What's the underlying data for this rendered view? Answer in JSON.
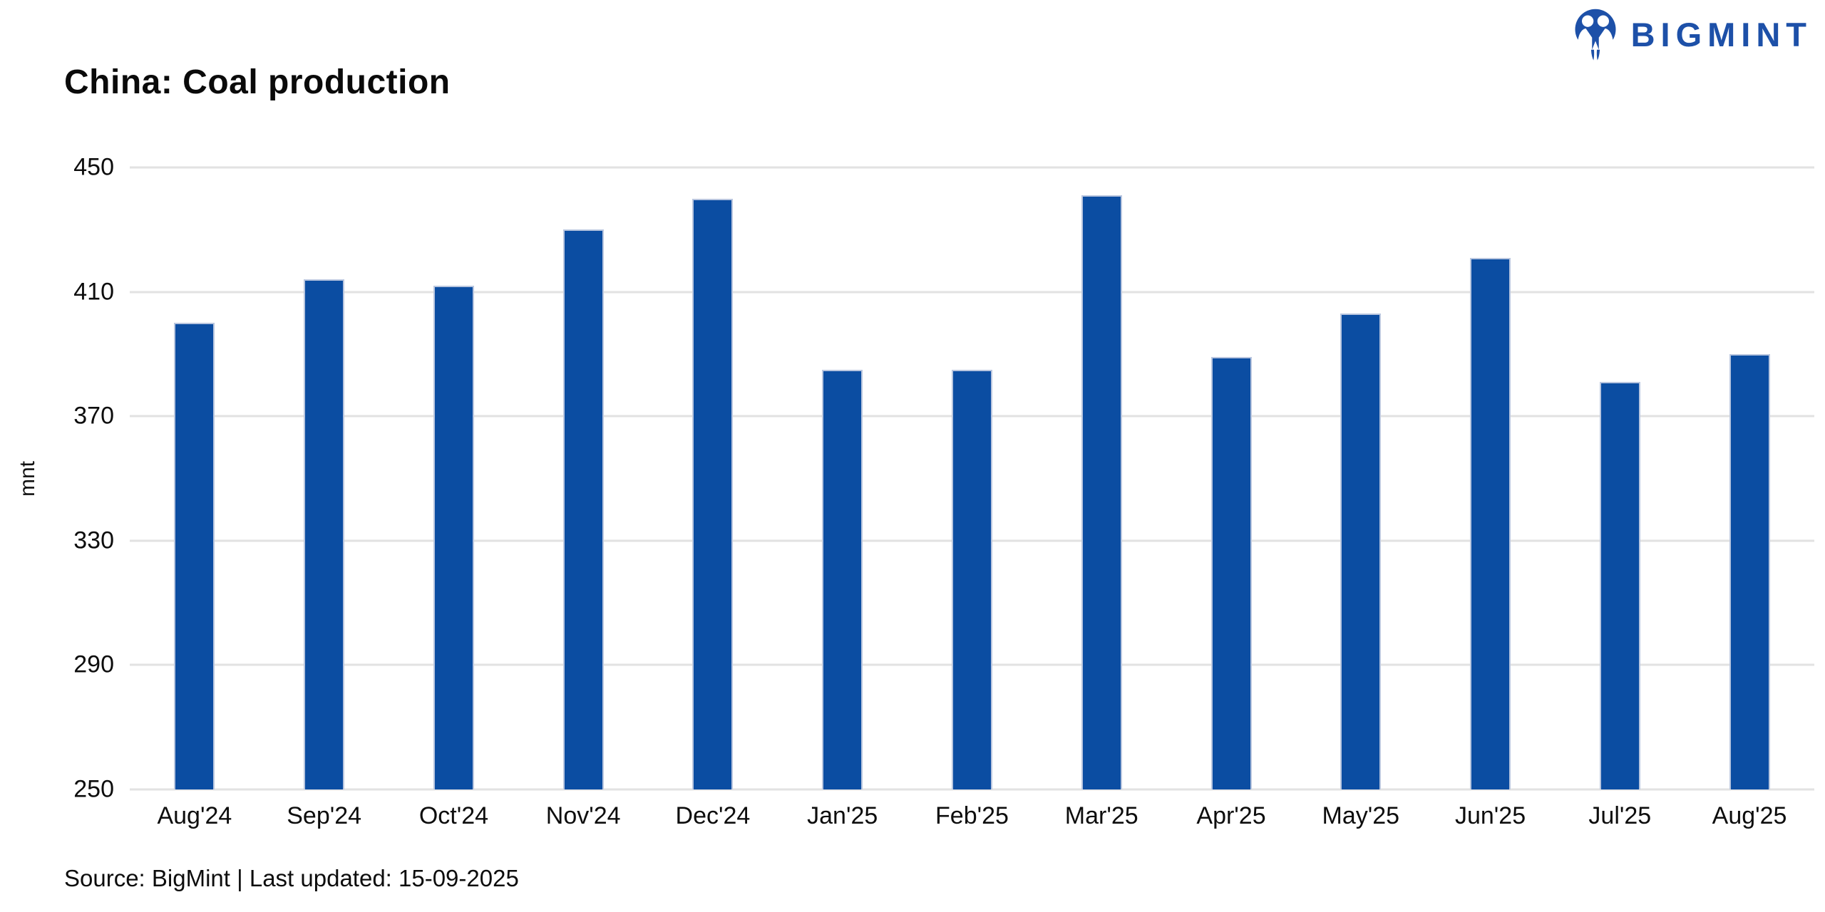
{
  "header": {
    "title": "China: Coal production",
    "logo_text": "BIGMINT"
  },
  "footer": {
    "source_text": "Source: BigMint | Last updated: 15-09-2025"
  },
  "chart_data": {
    "type": "bar",
    "title": "China: Coal production",
    "xlabel": "",
    "ylabel": "mnt",
    "categories": [
      "Aug'24",
      "Sep'24",
      "Oct'24",
      "Nov'24",
      "Dec'24",
      "Jan'25",
      "Feb'25",
      "Mar'25",
      "Apr'25",
      "May'25",
      "Jun'25",
      "Jul'25",
      "Aug'25"
    ],
    "values": [
      400,
      414,
      412,
      430,
      440,
      385,
      385,
      441,
      389,
      403,
      421,
      381,
      390
    ],
    "ylim": [
      250,
      450
    ],
    "yticks": [
      250,
      290,
      330,
      370,
      410,
      450
    ],
    "grid": "horizontal",
    "legend": "none",
    "colors": {
      "bar": "#0b4da2",
      "bar_border": "#b9c6df",
      "gridline": "#e2e2e2",
      "logo_blue": "#1d50a8",
      "text": "#0d0d0d"
    }
  }
}
